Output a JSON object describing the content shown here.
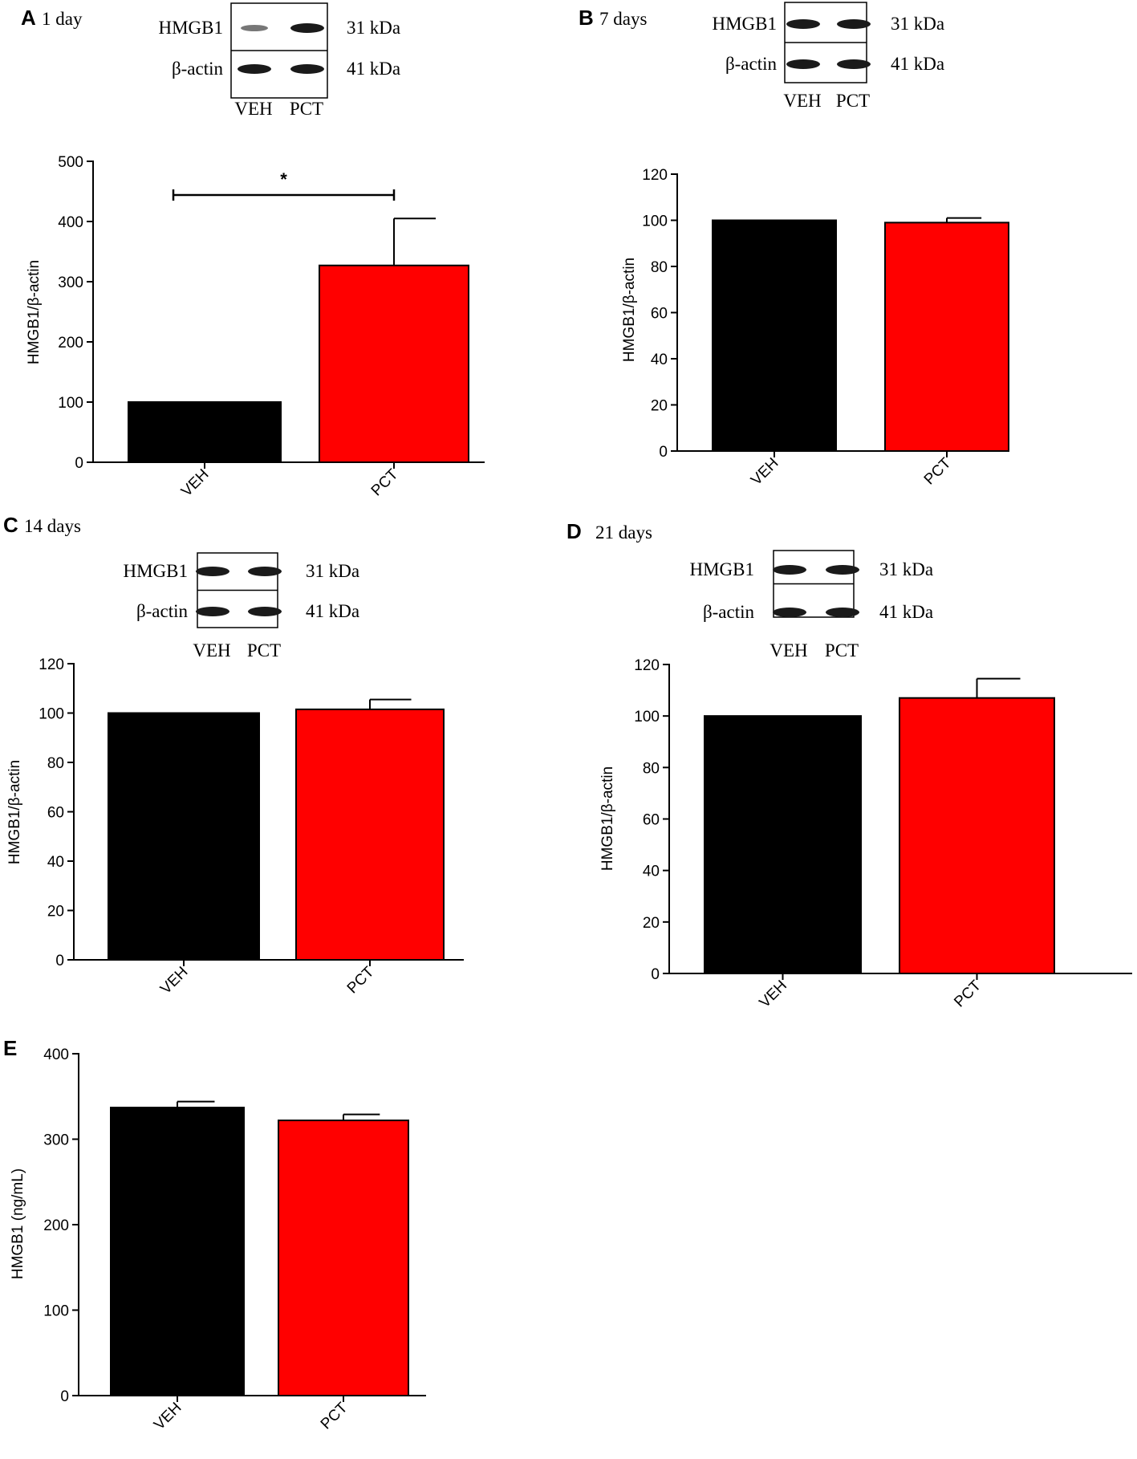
{
  "colors": {
    "veh": "#000000",
    "pct": "#ff0000"
  },
  "chart_data": [
    {
      "panel": "A",
      "type": "bar",
      "time_label": "1 day",
      "categories": [
        "VEH",
        "PCT"
      ],
      "values": [
        100,
        327
      ],
      "errors": [
        0,
        78
      ],
      "ylabel": "HMGB1/β-actin",
      "ylim": [
        0,
        500
      ],
      "yticks": [
        "0",
        "100",
        "200",
        "300",
        "400",
        "500"
      ],
      "significance": "*",
      "blot": {
        "rows": [
          "HMGB1",
          "β-actin"
        ],
        "sizes": [
          "31 kDa",
          "41 kDa"
        ],
        "lanes": [
          "VEH",
          "PCT"
        ]
      }
    },
    {
      "panel": "B",
      "type": "bar",
      "time_label": "7 days",
      "categories": [
        "VEH",
        "PCT"
      ],
      "values": [
        100,
        99
      ],
      "errors": [
        0,
        2
      ],
      "ylabel": "HMGB1/β-actin",
      "ylim": [
        0,
        120
      ],
      "yticks": [
        "0",
        "20",
        "40",
        "60",
        "80",
        "100",
        "120"
      ],
      "blot": {
        "rows": [
          "HMGB1",
          "β-actin"
        ],
        "sizes": [
          "31 kDa",
          "41 kDa"
        ],
        "lanes": [
          "VEH",
          "PCT"
        ]
      }
    },
    {
      "panel": "C",
      "type": "bar",
      "time_label": "14 days",
      "categories": [
        "VEH",
        "PCT"
      ],
      "values": [
        100,
        101.5
      ],
      "errors": [
        0,
        4
      ],
      "ylabel": "HMGB1/β-actin",
      "ylim": [
        0,
        120
      ],
      "yticks": [
        "0",
        "20",
        "40",
        "60",
        "80",
        "100",
        "120"
      ],
      "blot": {
        "rows": [
          "HMGB1",
          "β-actin"
        ],
        "sizes": [
          "31 kDa",
          "41 kDa"
        ],
        "lanes": [
          "VEH",
          "PCT"
        ]
      }
    },
    {
      "panel": "D",
      "type": "bar",
      "time_label": "21 days",
      "categories": [
        "VEH",
        "PCT"
      ],
      "values": [
        100,
        107
      ],
      "errors": [
        0,
        7.5
      ],
      "ylabel": "HMGB1/β-actin",
      "ylim": [
        0,
        120
      ],
      "yticks": [
        "0",
        "20",
        "40",
        "60",
        "80",
        "100",
        "120"
      ],
      "blot": {
        "rows": [
          "HMGB1",
          "β-actin"
        ],
        "sizes": [
          "31 kDa",
          "41 kDa"
        ],
        "lanes": [
          "VEH",
          "PCT"
        ]
      }
    },
    {
      "panel": "E",
      "type": "bar",
      "categories": [
        "VEH",
        "PCT"
      ],
      "values": [
        337,
        322
      ],
      "errors": [
        7,
        7
      ],
      "ylabel": "HMGB1 (ng/mL)",
      "ylim": [
        0,
        400
      ],
      "yticks": [
        "0",
        "100",
        "200",
        "300",
        "400"
      ]
    }
  ]
}
